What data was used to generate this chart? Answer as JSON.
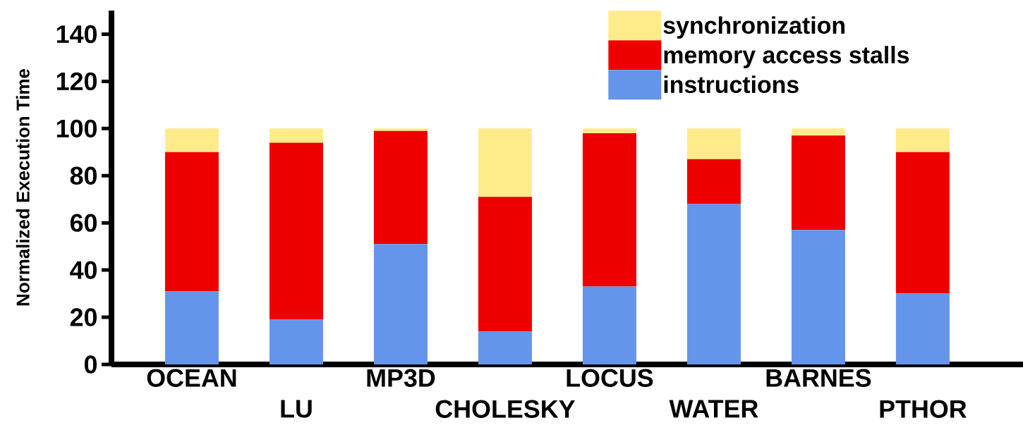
{
  "chart_data": {
    "type": "bar",
    "stacked": true,
    "ylabel": "Normalized Execution Time",
    "categories": [
      "OCEAN",
      "LU",
      "MP3D",
      "CHOLESKY",
      "LOCUS",
      "WATER",
      "BARNES",
      "PTHOR"
    ],
    "series": [
      {
        "name": "instructions",
        "color": "#6495ea",
        "values": [
          31,
          19,
          51,
          14,
          33,
          68,
          57,
          30
        ]
      },
      {
        "name": "memory access stalls",
        "color": "#ee0000",
        "values": [
          59,
          75,
          48,
          57,
          65,
          19,
          40,
          60
        ]
      },
      {
        "name": "synchronization",
        "color": "#ffeb8a",
        "values": [
          10,
          6,
          1,
          29,
          2,
          13,
          3,
          10
        ]
      }
    ],
    "ylim": [
      0,
      150
    ],
    "yticks": [
      0,
      20,
      40,
      60,
      80,
      100,
      120,
      140
    ],
    "legend": "top right",
    "grid": false
  }
}
